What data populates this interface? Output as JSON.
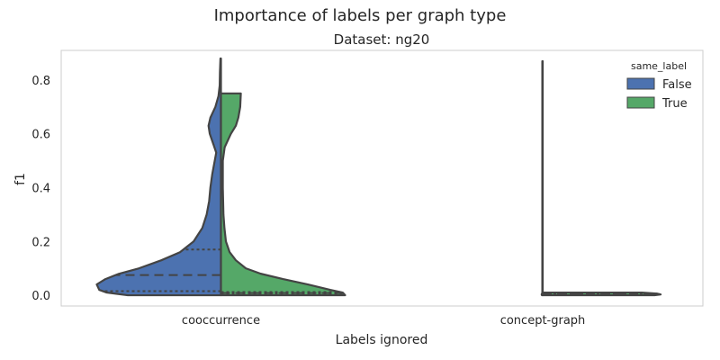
{
  "chart_data": {
    "type": "violin",
    "suptitle": "Importance of labels per graph type",
    "title": "Dataset: ng20",
    "xlabel": "Labels ignored",
    "ylabel": "f1",
    "categories": [
      "cooccurrence",
      "concept-graph"
    ],
    "ylim": [
      -0.04,
      0.91
    ],
    "yticks": [
      0.0,
      0.2,
      0.4,
      0.6,
      0.8
    ],
    "ytick_labels": [
      "0.0",
      "0.2",
      "0.4",
      "0.6",
      "0.8"
    ],
    "grid": false,
    "split": true,
    "inner": "quartile",
    "legend": {
      "title": "same_label",
      "position": "top-right",
      "entries": [
        {
          "label": "False",
          "color": "#4c72b0"
        },
        {
          "label": "True",
          "color": "#55a868"
        }
      ]
    },
    "series": [
      {
        "name": "False",
        "color": "#4c72b0",
        "violins": [
          {
            "category": "cooccurrence",
            "range": [
              0.0,
              0.88
            ],
            "quartiles": [
              0.015,
              0.075,
              0.17
            ],
            "density": [
              [
                0.0,
                0.75
              ],
              [
                0.01,
                0.92
              ],
              [
                0.02,
                0.98
              ],
              [
                0.04,
                1.0
              ],
              [
                0.06,
                0.93
              ],
              [
                0.08,
                0.82
              ],
              [
                0.1,
                0.66
              ],
              [
                0.13,
                0.48
              ],
              [
                0.16,
                0.33
              ],
              [
                0.2,
                0.22
              ],
              [
                0.25,
                0.15
              ],
              [
                0.3,
                0.115
              ],
              [
                0.35,
                0.095
              ],
              [
                0.4,
                0.085
              ],
              [
                0.45,
                0.07
              ],
              [
                0.5,
                0.05
              ],
              [
                0.53,
                0.038
              ],
              [
                0.56,
                0.06
              ],
              [
                0.6,
                0.09
              ],
              [
                0.63,
                0.1
              ],
              [
                0.66,
                0.085
              ],
              [
                0.7,
                0.045
              ],
              [
                0.74,
                0.02
              ],
              [
                0.78,
                0.01
              ],
              [
                0.83,
                0.008
              ],
              [
                0.88,
                0.004
              ]
            ]
          },
          {
            "category": "concept-graph",
            "range": [
              0.0,
              0.87
            ],
            "quartiles": [
              0.002,
              0.003,
              0.004
            ],
            "density": [
              [
                0.0,
                0.006
              ],
              [
                0.002,
                0.008
              ],
              [
                0.004,
                0.008
              ],
              [
                0.006,
                0.006
              ],
              [
                0.008,
                0.003
              ],
              [
                0.02,
                0.003
              ],
              [
                0.2,
                0.003
              ],
              [
                0.5,
                0.003
              ],
              [
                0.8,
                0.003
              ],
              [
                0.87,
                0.003
              ]
            ]
          }
        ]
      },
      {
        "name": "True",
        "color": "#55a868",
        "violins": [
          {
            "category": "cooccurrence",
            "range": [
              0.0,
              0.75
            ],
            "quartiles": [
              0.005,
              0.008,
              0.012
            ],
            "density": [
              [
                0.0,
                1.0
              ],
              [
                0.01,
                0.98
              ],
              [
                0.02,
                0.88
              ],
              [
                0.04,
                0.7
              ],
              [
                0.06,
                0.5
              ],
              [
                0.08,
                0.32
              ],
              [
                0.1,
                0.2
              ],
              [
                0.13,
                0.12
              ],
              [
                0.16,
                0.07
              ],
              [
                0.2,
                0.04
              ],
              [
                0.25,
                0.028
              ],
              [
                0.3,
                0.02
              ],
              [
                0.4,
                0.015
              ],
              [
                0.5,
                0.015
              ],
              [
                0.55,
                0.03
              ],
              [
                0.6,
                0.08
              ],
              [
                0.63,
                0.12
              ],
              [
                0.66,
                0.14
              ],
              [
                0.7,
                0.155
              ],
              [
                0.75,
                0.16
              ]
            ]
          },
          {
            "category": "concept-graph",
            "range": [
              0.0,
              0.01
            ],
            "quartiles": [
              0.002,
              0.004,
              0.006
            ],
            "density": [
              [
                0.0,
                0.9
              ],
              [
                0.003,
                0.95
              ],
              [
                0.006,
                0.92
              ],
              [
                0.01,
                0.8
              ]
            ]
          }
        ]
      }
    ]
  }
}
